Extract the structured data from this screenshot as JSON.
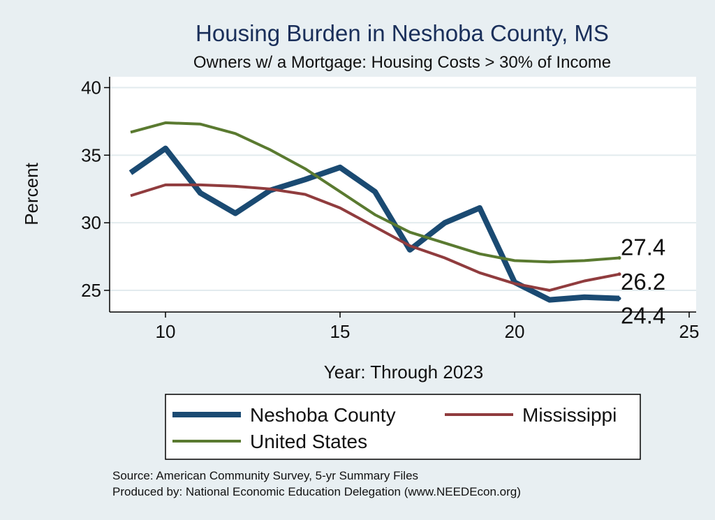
{
  "chart_data": {
    "type": "line",
    "title": "Housing Burden in Neshoba County, MS",
    "subtitle": "Owners w/ a Mortgage: Housing Costs > 30% of Income",
    "xlabel": "Year: Through 2023",
    "ylabel": "Percent",
    "xlim": [
      8.4,
      25.2
    ],
    "ylim": [
      23.4,
      40.8
    ],
    "xticks": [
      10,
      15,
      20,
      25
    ],
    "yticks": [
      25,
      30,
      35,
      40
    ],
    "grid": true,
    "legend_position": "bottom",
    "series": [
      {
        "name": "Neshoba County",
        "color": "#1a4a72",
        "x": [
          9,
          10,
          11,
          12,
          13,
          14,
          15,
          16,
          17,
          18,
          19,
          20,
          21,
          22,
          23
        ],
        "y": [
          33.7,
          35.5,
          32.2,
          30.7,
          32.4,
          33.2,
          34.1,
          32.3,
          28.0,
          30.0,
          31.1,
          25.6,
          24.3,
          24.5,
          24.4
        ],
        "end_label": "24.4"
      },
      {
        "name": "Mississippi",
        "color": "#903c3e",
        "x": [
          9,
          10,
          11,
          12,
          13,
          14,
          15,
          16,
          17,
          18,
          19,
          20,
          21,
          22,
          23
        ],
        "y": [
          32.0,
          32.8,
          32.8,
          32.7,
          32.5,
          32.1,
          31.1,
          29.7,
          28.3,
          27.4,
          26.3,
          25.5,
          25.0,
          25.7,
          26.2
        ],
        "end_label": "26.2"
      },
      {
        "name": "United States",
        "color": "#5a7a30",
        "x": [
          9,
          10,
          11,
          12,
          13,
          14,
          15,
          16,
          17,
          18,
          19,
          20,
          21,
          22,
          23
        ],
        "y": [
          36.7,
          37.4,
          37.3,
          36.6,
          35.4,
          34.0,
          32.3,
          30.6,
          29.3,
          28.5,
          27.7,
          27.2,
          27.1,
          27.2,
          27.4
        ],
        "end_label": "27.4"
      }
    ],
    "notes": [
      "Source: American Community Survey, 5-yr Summary Files",
      "Produced by: National Economic Education Delegation (www.NEEDEcon.org)"
    ]
  },
  "colors": {
    "background": "#e8eff2",
    "plot_area": "#ffffff",
    "gridline": "#e2ebee",
    "title": "#1a2f5a"
  }
}
